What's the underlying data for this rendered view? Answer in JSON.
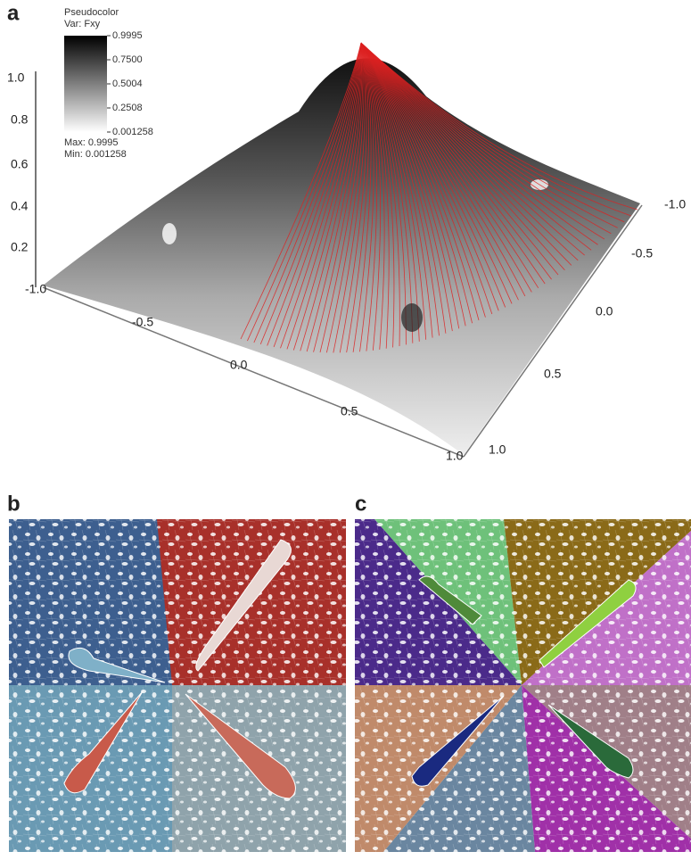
{
  "panels": [
    {
      "label": "a",
      "legend": {
        "title": "Pseudocolor",
        "variable": "Var: Fxy",
        "ticks": [
          "0.9995",
          "0.7500",
          "0.5004",
          "0.2508",
          "0.001258"
        ],
        "max": "Max:  0.9995",
        "min": "Min:  0.001258"
      },
      "z_ticks": [
        "1.0",
        "0.8",
        "0.6",
        "0.4",
        "0.2"
      ],
      "x_ticks": [
        "-1.0",
        "-0.5",
        "0.0",
        "0.5",
        "1.0"
      ],
      "y_ticks": [
        "-1.0",
        "-0.5",
        "0.0",
        "0.5",
        "1.0"
      ]
    },
    {
      "label": "b"
    },
    {
      "label": "c"
    }
  ]
}
